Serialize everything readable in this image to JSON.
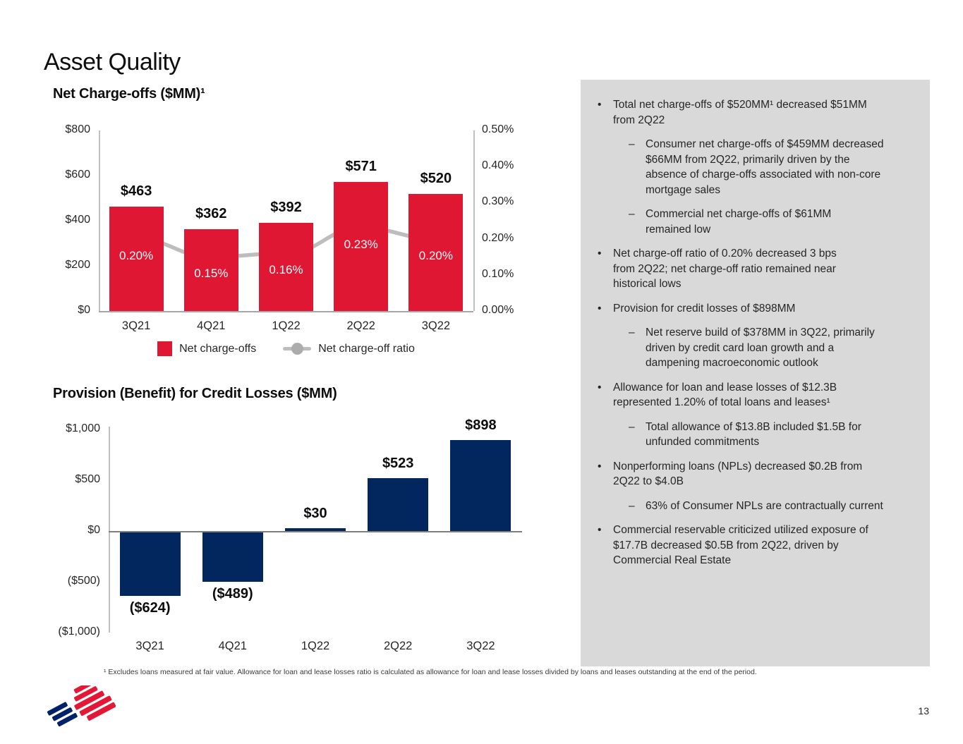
{
  "slide": {
    "title": "Asset Quality",
    "page_number": "13",
    "footnote": "¹ Excludes loans measured at fair value. Allowance for loan and lease losses ratio is calculated as allowance for loan and lease losses divided by loans and leases outstanding at the end of the period."
  },
  "colors": {
    "bar_red": "#E01733",
    "bar_navy": "#02265E",
    "line_gray": "#BDBDBD",
    "marker_gray": "#ACACAC",
    "panel_bg": "#D9D9D9",
    "axis_gray": "#BFBFBF",
    "logo_red": "#E31837",
    "logo_blue": "#012169"
  },
  "chart_data": [
    {
      "type": "bar",
      "title": "Net Charge-offs ($MM)¹",
      "categories": [
        "3Q21",
        "4Q21",
        "1Q22",
        "2Q22",
        "3Q22"
      ],
      "series": [
        {
          "name": "Net charge-offs",
          "type": "bar",
          "values": [
            463,
            362,
            392,
            571,
            520
          ],
          "labels": [
            "$463",
            "$362",
            "$392",
            "$571",
            "$520"
          ],
          "color": "#E01733"
        },
        {
          "name": "Net charge-off ratio",
          "type": "line",
          "values": [
            0.2,
            0.15,
            0.16,
            0.23,
            0.2
          ],
          "labels": [
            "0.20%",
            "0.15%",
            "0.16%",
            "0.23%",
            "0.20%"
          ],
          "color": "#ACACAC"
        }
      ],
      "left_axis": {
        "ticks": [
          "$800",
          "$600",
          "$400",
          "$200",
          "$0"
        ],
        "min": 0,
        "max": 800
      },
      "right_axis": {
        "ticks": [
          "0.50%",
          "0.40%",
          "0.30%",
          "0.20%",
          "0.10%",
          "0.00%"
        ],
        "min": 0,
        "max": 0.5
      },
      "legend_position": "bottom",
      "grid": false
    },
    {
      "type": "bar",
      "title": "Provision (Benefit) for Credit Losses ($MM)",
      "categories": [
        "3Q21",
        "4Q21",
        "1Q22",
        "2Q22",
        "3Q22"
      ],
      "values": [
        -624,
        -489,
        30,
        523,
        898
      ],
      "labels": [
        "($624)",
        "($489)",
        "$30",
        "$523",
        "$898"
      ],
      "axis": {
        "ticks": [
          "$1,000",
          "$500",
          "$0",
          "($500)",
          "($1,000)"
        ],
        "min": -1000,
        "max": 1000
      },
      "color": "#02265E",
      "grid": false
    }
  ],
  "panel": {
    "bullets": [
      {
        "level": 1,
        "text": "Total net charge-offs of $520MM¹ decreased $51MM\nfrom 2Q22"
      },
      {
        "level": 2,
        "text": "Consumer net charge-offs of $459MM decreased\n$66MM from 2Q22, primarily driven by the\nabsence of charge-offs associated with non-core\nmortgage sales"
      },
      {
        "level": 2,
        "text": "Commercial net charge-offs of $61MM\nremained low"
      },
      {
        "level": 1,
        "text": "Net charge-off ratio of 0.20% decreased 3 bps\nfrom 2Q22; net charge-off ratio remained near\nhistorical lows"
      },
      {
        "level": 1,
        "text": "Provision for credit losses of $898MM"
      },
      {
        "level": 2,
        "text": "Net reserve build of $378MM in 3Q22, primarily\ndriven by credit card loan growth and a\ndampening macroeconomic outlook"
      },
      {
        "level": 1,
        "text": "Allowance for loan and lease losses of $12.3B\nrepresented 1.20% of total loans and leases¹"
      },
      {
        "level": 2,
        "text": "Total allowance of $13.8B included $1.5B for\nunfunded commitments"
      },
      {
        "level": 1,
        "text": "Nonperforming loans (NPLs) decreased $0.2B from\n2Q22 to $4.0B"
      },
      {
        "level": 2,
        "text": "63% of Consumer NPLs are contractually current"
      },
      {
        "level": 1,
        "text": "Commercial reservable criticized utilized exposure of\n$17.7B decreased $0.5B from 2Q22, driven by\nCommercial Real Estate"
      }
    ],
    "bullet_glyph": "•",
    "sub_bullet_glyph": "–"
  },
  "legend": {
    "bar_label": "Net charge-offs",
    "line_label": "Net charge-off ratio"
  }
}
